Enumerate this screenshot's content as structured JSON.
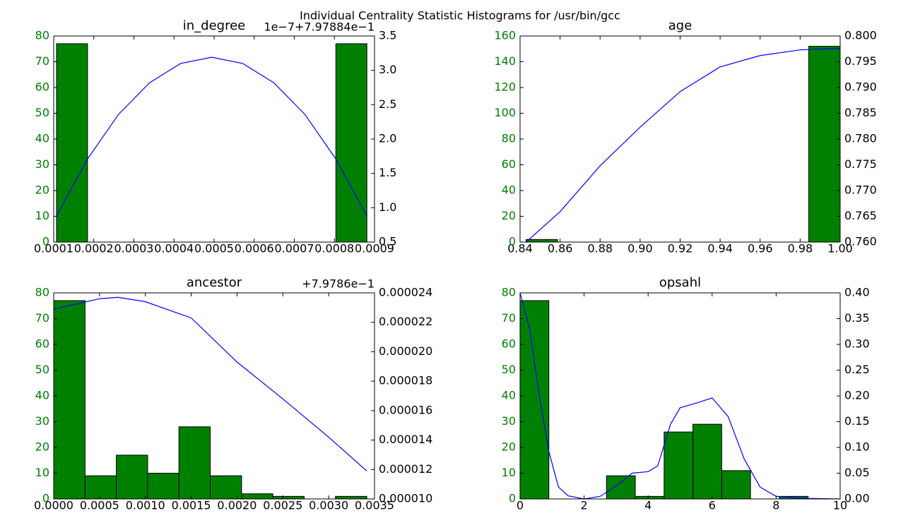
{
  "title": "Individual Centrality Statistic Histograms for /usr/bin/gcc",
  "chart_data": [
    {
      "type": "histogram",
      "title": "in_degree",
      "color": "#008000",
      "bins": [
        0.000107,
        0.0001844,
        0.0002618,
        0.0003392,
        0.0004166,
        0.000494,
        0.0005714,
        0.0006488,
        0.0007262,
        0.0008036,
        0.000881
      ],
      "values": [
        77,
        0,
        0,
        0,
        0,
        0,
        0,
        0,
        0,
        77
      ],
      "xlim": [
        0.0001,
        0.0009
      ],
      "xticks": [
        0.0001,
        0.0002,
        0.0003,
        0.0004,
        0.0005,
        0.0006,
        0.0007,
        0.0008,
        0.0009
      ],
      "ylim": [
        0,
        80
      ],
      "yticks": [
        0,
        10,
        20,
        30,
        40,
        50,
        60,
        70,
        80
      ],
      "y2lim": [
        0.5,
        3.5
      ],
      "y2ticks": [
        0.5,
        {
          "value": 1,
          "label": "1.0"
        },
        1.5,
        {
          "value": 2,
          "label": "2.0"
        },
        2.5,
        {
          "value": 3,
          "label": "3.0"
        },
        3.5
      ],
      "y2_offset": "1e−7+7.97884e−1",
      "series": [
        {
          "color": "#0000ff",
          "axis": "y2",
          "x": [
            0.000107,
            0.0001844,
            0.0002618,
            0.0003392,
            0.0004166,
            0.000494,
            0.0005714,
            0.0006488,
            0.0007262,
            0.0008036,
            0.000881
          ],
          "values": [
            0.88,
            1.71,
            2.36,
            2.82,
            3.1,
            3.19,
            3.1,
            2.82,
            2.36,
            1.71,
            0.88
          ]
        }
      ]
    },
    {
      "type": "histogram",
      "title": "age",
      "color": "#008000",
      "bins": [
        0.843,
        0.8587,
        0.8744,
        0.8901,
        0.9058,
        0.9215,
        0.9372,
        0.9529,
        0.9686,
        0.9843,
        1.0
      ],
      "values": [
        2,
        0,
        0,
        0,
        0,
        0,
        0,
        0,
        0,
        152
      ],
      "xlim": [
        0.84,
        1.0
      ],
      "xticks": [
        0.84,
        0.86,
        0.88,
        {
          "value": 0.9,
          "label": "0.90"
        },
        0.92,
        0.94,
        0.96,
        0.98,
        {
          "value": 1,
          "label": "1.00"
        }
      ],
      "ylim": [
        0,
        160
      ],
      "yticks": [
        0,
        20,
        40,
        60,
        80,
        100,
        120,
        140,
        160
      ],
      "y2lim": [
        0.76,
        0.8
      ],
      "y2ticks": [
        {
          "value": 0.76,
          "label": "0.760"
        },
        0.765,
        {
          "value": 0.77,
          "label": "0.770"
        },
        0.775,
        {
          "value": 0.78,
          "label": "0.780"
        },
        0.785,
        {
          "value": 0.79,
          "label": "0.790"
        },
        0.795,
        {
          "value": 0.8,
          "label": "0.800"
        }
      ],
      "series": [
        {
          "color": "#0000ff",
          "axis": "y2",
          "x": [
            0.843,
            0.86,
            0.88,
            0.9,
            0.92,
            0.94,
            0.96,
            0.98,
            1.0
          ],
          "values": [
            0.76,
            0.7659,
            0.7748,
            0.7823,
            0.7892,
            0.794,
            0.7962,
            0.7973,
            0.7976
          ]
        }
      ]
    },
    {
      "type": "histogram",
      "title": "ancestor",
      "color": "#008000",
      "bins": [
        0,
        0.000342,
        0.000683,
        0.001025,
        0.001366,
        0.001708,
        0.00205,
        0.002391,
        0.002733,
        0.003074,
        0.003416
      ],
      "values": [
        77,
        9,
        17,
        10,
        28,
        9,
        2,
        1,
        0,
        1
      ],
      "xlim": [
        0,
        0.0035
      ],
      "xticks": [
        {
          "value": 0,
          "label": "0.0000"
        },
        0.0005,
        {
          "value": 0.001,
          "label": "0.0010"
        },
        0.0015,
        {
          "value": 0.002,
          "label": "0.0020"
        },
        0.0025,
        {
          "value": 0.003,
          "label": "0.0030"
        },
        0.0035
      ],
      "ylim": [
        0,
        80
      ],
      "yticks": [
        0,
        10,
        20,
        30,
        40,
        50,
        60,
        70,
        80
      ],
      "y2lim": [
        1e-05,
        2.4e-05
      ],
      "y2ticks": [
        {
          "value": 1e-05,
          "label": "0.000010"
        },
        {
          "value": 1.2e-05,
          "label": "0.000012"
        },
        {
          "value": 1.4e-05,
          "label": "0.000014"
        },
        {
          "value": 1.6e-05,
          "label": "0.000016"
        },
        {
          "value": 1.8e-05,
          "label": "0.000018"
        },
        {
          "value": 2e-05,
          "label": "0.000020"
        },
        {
          "value": 2.2e-05,
          "label": "0.000022"
        },
        {
          "value": 2.4e-05,
          "label": "0.000024"
        }
      ],
      "y2_offset": "+7.9786e−1",
      "series": [
        {
          "color": "#0000ff",
          "axis": "y2",
          "x": [
            0,
            0.0005,
            0.0007,
            0.001,
            0.0015,
            0.002,
            0.0025,
            0.003,
            0.003416
          ],
          "values": [
            2.29e-05,
            2.36e-05,
            2.37e-05,
            2.34e-05,
            2.23e-05,
            1.93e-05,
            1.68e-05,
            1.42e-05,
            1.19e-05
          ]
        }
      ]
    },
    {
      "type": "histogram",
      "title": "opsahl",
      "color": "#008000",
      "bins": [
        0,
        0.9,
        1.8,
        2.7,
        3.6,
        4.5,
        5.4,
        6.3,
        7.2,
        8.1,
        9.0
      ],
      "values": [
        77,
        0,
        0,
        9,
        1,
        26,
        29,
        11,
        0,
        1
      ],
      "xlim": [
        0,
        10
      ],
      "xticks": [
        0,
        2,
        4,
        6,
        8,
        10
      ],
      "ylim": [
        0,
        80
      ],
      "yticks": [
        0,
        10,
        20,
        30,
        40,
        50,
        60,
        70,
        80
      ],
      "y2lim": [
        0,
        0.4
      ],
      "y2ticks": [
        {
          "value": 0,
          "label": "0.00"
        },
        0.05,
        {
          "value": 0.1,
          "label": "0.10"
        },
        0.15,
        {
          "value": 0.2,
          "label": "0.20"
        },
        0.25,
        {
          "value": 0.3,
          "label": "0.30"
        },
        0.35,
        {
          "value": 0.4,
          "label": "0.40"
        }
      ],
      "series": [
        {
          "color": "#0000ff",
          "axis": "y2",
          "x": [
            0,
            0.3,
            0.6,
            0.9,
            1.2,
            1.5,
            2,
            2.5,
            3,
            3.5,
            4,
            4.3,
            4.7,
            5,
            5.5,
            6,
            6.5,
            7,
            7.5,
            8,
            9,
            10
          ],
          "values": [
            0.4,
            0.33,
            0.2,
            0.092,
            0.023,
            0.006,
            0,
            0.005,
            0.025,
            0.05,
            0.053,
            0.064,
            0.145,
            0.177,
            0.186,
            0.196,
            0.16,
            0.078,
            0.023,
            0.005,
            0.001,
            0
          ]
        }
      ]
    }
  ]
}
